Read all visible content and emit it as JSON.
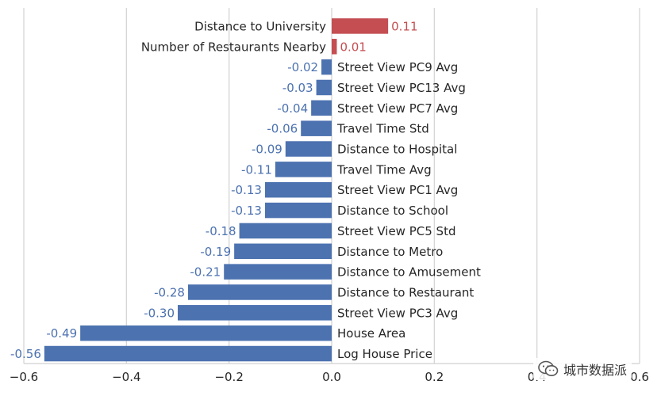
{
  "chart_data": {
    "type": "bar",
    "orientation": "horizontal",
    "categories": [
      "Distance to University",
      "Number of Restaurants Nearby",
      "Street View PC9 Avg",
      "Street View PC13 Avg",
      "Street View PC7 Avg",
      "Travel Time Std",
      "Distance to Hospital",
      "Travel Time Avg",
      "Street View PC1 Avg",
      "Distance to School",
      "Street View PC5 Std",
      "Distance to Metro",
      "Distance to Amusement",
      "Distance to Restaurant",
      "Street View PC3 Avg",
      "House Area",
      "Log House Price"
    ],
    "values": [
      0.11,
      0.01,
      -0.02,
      -0.03,
      -0.04,
      -0.06,
      -0.09,
      -0.11,
      -0.13,
      -0.13,
      -0.18,
      -0.19,
      -0.21,
      -0.28,
      -0.3,
      -0.49,
      -0.56
    ],
    "value_labels": [
      "0.11",
      "0.01",
      "-0.02",
      "-0.03",
      "-0.04",
      "-0.06",
      "-0.09",
      "-0.11",
      "-0.13",
      "-0.13",
      "-0.18",
      "-0.19",
      "-0.21",
      "-0.28",
      "-0.30",
      "-0.49",
      "-0.56"
    ],
    "title": "",
    "xlabel": "",
    "ylabel": "",
    "xlim": [
      -0.6,
      0.6
    ],
    "xticks": [
      -0.6,
      -0.4,
      -0.2,
      0.0,
      0.2,
      0.4,
      0.6
    ],
    "xtick_labels": [
      "−0.6",
      "−0.4",
      "−0.2",
      "0.0",
      "0.2",
      "0.4",
      "0.6"
    ],
    "grid": "vertical",
    "positive_color": "#c44e52",
    "negative_color": "#4c72b0"
  },
  "watermark": {
    "text": "城市数据派",
    "icon": "wechat-icon"
  }
}
